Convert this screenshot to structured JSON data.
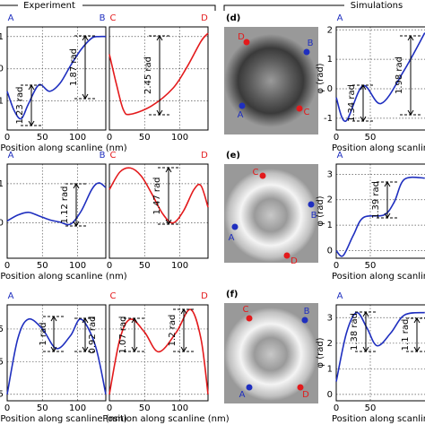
{
  "header": {
    "experiment": "Experiment",
    "simulations": "Simulations"
  },
  "chart_data": [
    {
      "type": "line",
      "ends": [
        "A",
        "B"
      ],
      "color": "#1f2fbf",
      "x": [
        0,
        10,
        20,
        30,
        45,
        60,
        75,
        90,
        105,
        120,
        130,
        140
      ],
      "values": [
        -0.7,
        -1.3,
        -1.55,
        -1.1,
        -0.5,
        -0.7,
        -0.45,
        0.1,
        0.6,
        0.95,
        1.0,
        1.0
      ],
      "xlim": [
        0,
        140
      ],
      "ylim": [
        -1.9,
        1.3
      ],
      "xticks": [
        0,
        50,
        100
      ],
      "yticks": [
        -1,
        0,
        1
      ],
      "grid": true,
      "xlabel": "Position along scanline (nm)",
      "annotations": [
        "1.23 rad",
        "1.87 rad"
      ]
    },
    {
      "type": "line",
      "ends": [
        "C",
        "D"
      ],
      "color": "#e31a1c",
      "x": [
        0,
        10,
        20,
        30,
        60,
        90,
        110,
        130,
        140
      ],
      "values": [
        0.45,
        -0.48,
        -1.28,
        -1.41,
        -1.15,
        -0.61,
        0.05,
        0.85,
        1.1
      ],
      "xlim": [
        0,
        140
      ],
      "ylim": [
        -1.9,
        1.3
      ],
      "xticks": [
        0,
        50,
        100
      ],
      "yticks": [
        -1,
        0,
        1
      ],
      "grid": true,
      "annotations": [
        "2.45 rad"
      ]
    },
    {
      "type": "line",
      "ends": [
        "A"
      ],
      "color": "#1f2fbf",
      "x": [
        0,
        14,
        39,
        66,
        99,
        130
      ],
      "values": [
        -0.3,
        -1.1,
        0.1,
        -0.5,
        0.6,
        1.9
      ],
      "xlim": [
        0,
        150
      ],
      "ylim": [
        -1.4,
        2.1
      ],
      "xticks": [
        0,
        50
      ],
      "yticks": [
        -1,
        0,
        1,
        2
      ],
      "grid": true,
      "xlabel": "Position along scanline (nm)",
      "ylabel": "φ (rad)",
      "annotations": [
        "1.34 rad",
        "1.98 rad"
      ]
    },
    {
      "type": "line",
      "ends": [
        "A",
        "B"
      ],
      "color": "#1f2fbf",
      "x": [
        0,
        15,
        30,
        45,
        60,
        75,
        90,
        105,
        120,
        130,
        140
      ],
      "values": [
        0.05,
        0.2,
        0.27,
        0.18,
        0.08,
        0.02,
        -0.03,
        0.3,
        0.85,
        1.02,
        0.9
      ],
      "xlim": [
        0,
        140
      ],
      "ylim": [
        -0.9,
        1.5
      ],
      "xticks": [
        0,
        50,
        100
      ],
      "yticks": [
        0,
        1
      ],
      "grid": true,
      "xlabel": "Position along scanline (nm)",
      "annotations": [
        "1.12 rad"
      ]
    },
    {
      "type": "line",
      "ends": [
        "C",
        "D"
      ],
      "color": "#e31a1c",
      "x": [
        0,
        15,
        30,
        45,
        60,
        75,
        90,
        105,
        120,
        130,
        140
      ],
      "values": [
        0.85,
        1.3,
        1.4,
        1.2,
        0.75,
        0.25,
        0.0,
        0.3,
        0.85,
        0.95,
        0.4
      ],
      "xlim": [
        0,
        140
      ],
      "ylim": [
        -0.9,
        1.5
      ],
      "xticks": [
        0,
        50,
        100
      ],
      "yticks": [
        0,
        1
      ],
      "grid": true,
      "annotations": [
        "1.47 rad"
      ]
    },
    {
      "type": "line",
      "ends": [
        "A"
      ],
      "color": "#1f2fbf",
      "x": [
        0,
        10,
        25,
        40,
        70,
        85,
        100,
        130
      ],
      "values": [
        0,
        -0.2,
        0.6,
        1.3,
        1.4,
        1.9,
        2.8,
        2.85
      ],
      "xlim": [
        0,
        150
      ],
      "ylim": [
        -0.3,
        3.4
      ],
      "xticks": [
        0,
        50
      ],
      "yticks": [
        0,
        1,
        2,
        3
      ],
      "grid": true,
      "xlabel": "Position along scanline (nm)",
      "ylabel": "φ (rad)",
      "annotations": [
        "1.39 rad"
      ]
    },
    {
      "type": "line",
      "ends": [
        "A"
      ],
      "color": "#1f2fbf",
      "x": [
        0,
        15,
        30,
        50,
        70,
        90,
        105,
        125,
        140
      ],
      "values": [
        0.5,
        2.2,
        2.8,
        2.5,
        1.9,
        2.3,
        2.8,
        2.0,
        0.5
      ],
      "xlim": [
        0,
        140
      ],
      "ylim": [
        0.3,
        3.24
      ],
      "xticks": [
        0,
        50,
        100
      ],
      "yticks": [
        0.5,
        1.5,
        2.5
      ],
      "grid": true,
      "xlabel": "Position along scanline (nm)",
      "annotations": [
        "1 rad",
        "0.92 rad"
      ]
    },
    {
      "type": "line",
      "ends": [
        "C",
        "D"
      ],
      "color": "#e31a1c",
      "x": [
        0,
        15,
        30,
        50,
        70,
        95,
        115,
        130,
        140
      ],
      "values": [
        0.5,
        2.2,
        2.8,
        2.4,
        1.8,
        2.4,
        3.1,
        2.2,
        0.5
      ],
      "xlim": [
        0,
        140
      ],
      "ylim": [
        0.3,
        3.24
      ],
      "xticks": [
        0,
        50,
        100
      ],
      "yticks": [
        0.5,
        1.5,
        2.5
      ],
      "grid": true,
      "xlabel": "Position along scanline (nm)",
      "annotations": [
        "1.07 rad",
        "1.2 rad"
      ]
    },
    {
      "type": "line",
      "ends": [
        "A"
      ],
      "color": "#1f2fbf",
      "x": [
        0,
        15,
        30,
        45,
        60,
        80,
        100,
        130
      ],
      "values": [
        0.5,
        2.4,
        3.2,
        2.6,
        1.9,
        2.4,
        3.1,
        3.2
      ],
      "xlim": [
        0,
        150
      ],
      "ylim": [
        -0.25,
        3.5
      ],
      "xticks": [
        0,
        50
      ],
      "yticks": [
        0,
        1,
        2,
        3
      ],
      "grid": true,
      "xlabel": "Position along scanline (nm)",
      "ylabel": "φ (rad)",
      "annotations": [
        "1.38 rad",
        "1.1 rad"
      ]
    }
  ],
  "images": [
    {
      "label": "(d)",
      "points": [
        {
          "name": "D",
          "color": "#e31a1c"
        },
        {
          "name": "B",
          "color": "#1f2fbf"
        },
        {
          "name": "A",
          "color": "#1f2fbf"
        },
        {
          "name": "C",
          "color": "#e31a1c"
        }
      ]
    },
    {
      "label": "(e)",
      "points": [
        {
          "name": "C",
          "color": "#e31a1c"
        },
        {
          "name": "B",
          "color": "#1f2fbf"
        },
        {
          "name": "A",
          "color": "#1f2fbf"
        },
        {
          "name": "D",
          "color": "#e31a1c"
        }
      ]
    },
    {
      "label": "(f)",
      "points": [
        {
          "name": "C",
          "color": "#e31a1c"
        },
        {
          "name": "B",
          "color": "#1f2fbf"
        },
        {
          "name": "A",
          "color": "#1f2fbf"
        },
        {
          "name": "D",
          "color": "#e31a1c"
        }
      ]
    }
  ]
}
